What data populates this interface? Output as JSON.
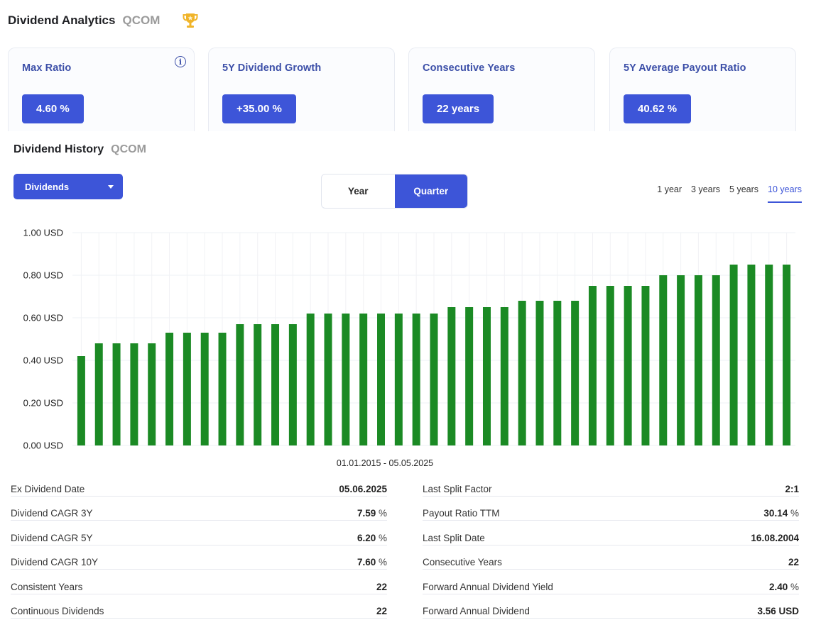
{
  "header": {
    "title": "Dividend Analytics",
    "ticker": "QCOM",
    "trophy_icon": "trophy-icon",
    "trophy_color": "#f0b429"
  },
  "cards": [
    {
      "label": "Max Ratio",
      "value": "4.60 %",
      "info": true
    },
    {
      "label": "5Y Dividend Growth",
      "value": "+35.00 %"
    },
    {
      "label": "Consecutive Years",
      "value": "22 years"
    },
    {
      "label": "5Y Average Payout Ratio",
      "value": "40.62 %"
    }
  ],
  "history": {
    "title": "Dividend History",
    "ticker": "QCOM"
  },
  "dropdown": {
    "label": "Dividends"
  },
  "toggle": {
    "year": "Year",
    "quarter": "Quarter",
    "active": "quarter"
  },
  "ranges": [
    {
      "label": "1 year"
    },
    {
      "label": "3 years"
    },
    {
      "label": "5 years"
    },
    {
      "label": "10 years",
      "active": true
    }
  ],
  "chart_data": {
    "type": "bar",
    "ylim": [
      0,
      1
    ],
    "y_ticks": [
      "1.00 USD",
      "0.80 USD",
      "0.60 USD",
      "0.40 USD",
      "0.20 USD",
      "0.00 USD"
    ],
    "y_tick_values": [
      1.0,
      0.8,
      0.6,
      0.4,
      0.2,
      0.0
    ],
    "bar_color": "#1b8a24",
    "grid": true,
    "values": [
      0.42,
      0.48,
      0.48,
      0.48,
      0.48,
      0.53,
      0.53,
      0.53,
      0.53,
      0.57,
      0.57,
      0.57,
      0.57,
      0.62,
      0.62,
      0.62,
      0.62,
      0.62,
      0.62,
      0.62,
      0.62,
      0.65,
      0.65,
      0.65,
      0.65,
      0.68,
      0.68,
      0.68,
      0.68,
      0.75,
      0.75,
      0.75,
      0.75,
      0.8,
      0.8,
      0.8,
      0.8,
      0.85,
      0.85,
      0.85,
      0.85
    ],
    "period": "01.01.2015 - 05.05.2025"
  },
  "stats_left": [
    {
      "key": "Ex Dividend Date",
      "value": "05.06.2025",
      "unit": ""
    },
    {
      "key": "Dividend CAGR 3Y",
      "value": "7.59",
      "unit": "%"
    },
    {
      "key": "Dividend CAGR 5Y",
      "value": "6.20",
      "unit": "%"
    },
    {
      "key": "Dividend CAGR 10Y",
      "value": "7.60",
      "unit": "%"
    },
    {
      "key": "Consistent Years",
      "value": "22",
      "unit": ""
    },
    {
      "key": "Continuous Dividends",
      "value": "22",
      "unit": ""
    }
  ],
  "stats_right": [
    {
      "key": "Last Split Factor",
      "value": "2:1",
      "unit": ""
    },
    {
      "key": "Payout Ratio TTM",
      "value": "30.14",
      "unit": "%"
    },
    {
      "key": "Last Split Date",
      "value": "16.08.2004",
      "unit": ""
    },
    {
      "key": "Consecutive Years",
      "value": "22",
      "unit": ""
    },
    {
      "key": "Forward Annual Dividend Yield",
      "value": "2.40",
      "unit": "%"
    },
    {
      "key": "Forward Annual Dividend",
      "value": "3.56 USD",
      "unit": ""
    }
  ]
}
